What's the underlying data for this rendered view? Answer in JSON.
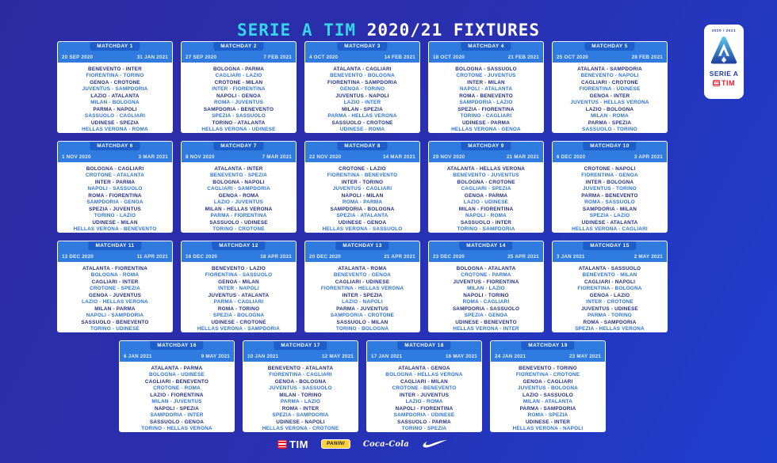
{
  "title": {
    "highlight": "SERIE A TIM",
    "rest": " 2020/21 FIXTURES"
  },
  "badge": {
    "season": "2020 / 2021",
    "league": "SERIE A",
    "sponsor": "TIM"
  },
  "colors": {
    "background_top": "#2c2ca2",
    "background_bottom": "#1e3ecf",
    "title_accent_cyan": "#35d6e8",
    "card_header_blue": "#2f7be0",
    "matchday_tab_blue": "#1d5ecb",
    "fixture_dark_blue": "#232f88",
    "fixture_light_blue": "#2e72d8",
    "tim_red": "#e8192c",
    "panini_yellow": "#ffd23d"
  },
  "footer": {
    "tim": "TIM",
    "panini": "PANINI",
    "coca_cola": "Coca-Cola",
    "nike": "nike-swoosh"
  },
  "matchdays": [
    {
      "label": "MATCHDAY 1",
      "first_leg": "20 SEP 2020",
      "second_leg": "31 JAN 2021",
      "fixtures": [
        "BENEVENTO - INTER",
        "FIORENTINA - TORINO",
        "GENOA - CROTONE",
        "JUVENTUS - SAMPDORIA",
        "LAZIO - ATALANTA",
        "MILAN - BOLOGNA",
        "PARMA - NAPOLI",
        "SASSUOLO - CAGLIARI",
        "UDINESE - SPEZIA",
        "HELLAS VERONA - ROMA"
      ]
    },
    {
      "label": "MATCHDAY 2",
      "first_leg": "27 SEP 2020",
      "second_leg": "7 FEB 2021",
      "fixtures": [
        "BOLOGNA - PARMA",
        "CAGLIARI - LAZIO",
        "CROTONE - MILAN",
        "INTER - FIORENTINA",
        "NAPOLI - GENOA",
        "ROMA - JUVENTUS",
        "SAMPDORIA - BENEVENTO",
        "SPEZIA - SASSUOLO",
        "TORINO - ATALANTA",
        "HELLAS VERONA - UDINESE"
      ]
    },
    {
      "label": "MATCHDAY 3",
      "first_leg": "4 OCT 2020",
      "second_leg": "14 FEB 2021",
      "fixtures": [
        "ATALANTA - CAGLIARI",
        "BENEVENTO - BOLOGNA",
        "FIORENTINA - SAMPDORIA",
        "GENOA - TORINO",
        "JUVENTUS - NAPOLI",
        "LAZIO - INTER",
        "MILAN - SPEZIA",
        "PARMA - HELLAS VERONA",
        "SASSUOLO - CROTONE",
        "UDINESE - ROMA"
      ]
    },
    {
      "label": "MATCHDAY 4",
      "first_leg": "18 OCT 2020",
      "second_leg": "21 FEB 2021",
      "fixtures": [
        "BOLOGNA - SASSUOLO",
        "CROTONE - JUVENTUS",
        "INTER - MILAN",
        "NAPOLI - ATALANTA",
        "ROMA - BENEVENTO",
        "SAMPDORIA - LAZIO",
        "SPEZIA - FIORENTINA",
        "TORINO - CAGLIARI",
        "UDINESE - PARMA",
        "HELLAS VERONA - GENOA"
      ]
    },
    {
      "label": "MATCHDAY 5",
      "first_leg": "25 OCT 2020",
      "second_leg": "28 FEB 2021",
      "fixtures": [
        "ATALANTA - SAMPDORIA",
        "BENEVENTO - NAPOLI",
        "CAGLIARI - CROTONE",
        "FIORENTINA - UDINESE",
        "GENOA - INTER",
        "JUVENTUS - HELLAS VERONA",
        "LAZIO - BOLOGNA",
        "MILAN - ROMA",
        "PARMA - SPEZIA",
        "SASSUOLO - TORINO"
      ]
    },
    {
      "label": "MATCHDAY 6",
      "first_leg": "1 NOV 2020",
      "second_leg": "3 MAR 2021",
      "fixtures": [
        "BOLOGNA - CAGLIARI",
        "CROTONE - ATALANTA",
        "INTER - PARMA",
        "NAPOLI - SASSUOLO",
        "ROMA - FIORENTINA",
        "SAMPDORIA - GENOA",
        "SPEZIA - JUVENTUS",
        "TORINO - LAZIO",
        "UDINESE - MILAN",
        "HELLAS VERONA - BENEVENTO"
      ]
    },
    {
      "label": "MATCHDAY 7",
      "first_leg": "8 NOV 2020",
      "second_leg": "7 MAR 2021",
      "fixtures": [
        "ATALANTA - INTER",
        "BENEVENTO - SPEZIA",
        "BOLOGNA - NAPOLI",
        "CAGLIARI - SAMPDORIA",
        "GENOA - ROMA",
        "LAZIO - JUVENTUS",
        "MILAN - HELLAS VERONA",
        "PARMA - FIORENTINA",
        "SASSUOLO - UDINESE",
        "TORINO - CROTONE"
      ]
    },
    {
      "label": "MATCHDAY 8",
      "first_leg": "22 NOV 2020",
      "second_leg": "14 MAR 2021",
      "fixtures": [
        "CROTONE - LAZIO",
        "FIORENTINA - BENEVENTO",
        "INTER - TORINO",
        "JUVENTUS - CAGLIARI",
        "NAPOLI - MILAN",
        "ROMA - PARMA",
        "SAMPDORIA - BOLOGNA",
        "SPEZIA - ATALANTA",
        "UDINESE - GENOA",
        "HELLAS VERONA - SASSUOLO"
      ]
    },
    {
      "label": "MATCHDAY 9",
      "first_leg": "29 NOV 2020",
      "second_leg": "21 MAR 2021",
      "fixtures": [
        "ATALANTA - HELLAS VERONA",
        "BENEVENTO - JUVENTUS",
        "BOLOGNA - CROTONE",
        "CAGLIARI - SPEZIA",
        "GENOA - PARMA",
        "LAZIO - UDINESE",
        "MILAN - FIORENTINA",
        "NAPOLI - ROMA",
        "SASSUOLO - INTER",
        "TORINO - SAMPDORIA"
      ]
    },
    {
      "label": "MATCHDAY 10",
      "first_leg": "6 DEC 2020",
      "second_leg": "3 APR 2021",
      "fixtures": [
        "CROTONE - NAPOLI",
        "FIORENTINA - GENOA",
        "INTER - BOLOGNA",
        "JUVENTUS - TORINO",
        "PARMA - BENEVENTO",
        "ROMA - SASSUOLO",
        "SAMPDORIA - MILAN",
        "SPEZIA - LAZIO",
        "UDINESE - ATALANTA",
        "HELLAS VERONA - CAGLIARI"
      ]
    },
    {
      "label": "MATCHDAY 11",
      "first_leg": "13 DEC 2020",
      "second_leg": "11 APR 2021",
      "fixtures": [
        "ATALANTA - FIORENTINA",
        "BOLOGNA - ROMA",
        "CAGLIARI - INTER",
        "CROTONE - SPEZIA",
        "GENOA - JUVENTUS",
        "LAZIO - HELLAS VERONA",
        "MILAN - PARMA",
        "NAPOLI - SAMPDORIA",
        "SASSUOLO - BENEVENTO",
        "TORINO - UDINESE"
      ]
    },
    {
      "label": "MATCHDAY 12",
      "first_leg": "16 DEC 2020",
      "second_leg": "18 APR 2021",
      "fixtures": [
        "BENEVENTO - LAZIO",
        "FIORENTINA - SASSUOLO",
        "GENOA - MILAN",
        "INTER - NAPOLI",
        "JUVENTUS - ATALANTA",
        "PARMA - CAGLIARI",
        "ROMA - TORINO",
        "SPEZIA - BOLOGNA",
        "UDINESE - CROTONE",
        "HELLAS VERONA - SAMPDORIA"
      ]
    },
    {
      "label": "MATCHDAY 13",
      "first_leg": "20 DEC 2020",
      "second_leg": "21 APR 2021",
      "fixtures": [
        "ATALANTA - ROMA",
        "BENEVENTO - GENOA",
        "CAGLIARI - UDINESE",
        "FIORENTINA - HELLAS VERONA",
        "INTER - SPEZIA",
        "LAZIO - NAPOLI",
        "PARMA - JUVENTUS",
        "SAMPDORIA - CROTONE",
        "SASSUOLO - MILAN",
        "TORINO - BOLOGNA"
      ]
    },
    {
      "label": "MATCHDAY 14",
      "first_leg": "23 DEC 2020",
      "second_leg": "25 APR 2021",
      "fixtures": [
        "BOLOGNA - ATALANTA",
        "CROTONE - PARMA",
        "JUVENTUS - FIORENTINA",
        "MILAN - LAZIO",
        "NAPOLI - TORINO",
        "ROMA - CAGLIARI",
        "SAMPDORIA - SASSUOLO",
        "SPEZIA - GENOA",
        "UDINESE - BENEVENTO",
        "HELLAS VERONA - INTER"
      ]
    },
    {
      "label": "MATCHDAY 15",
      "first_leg": "3 JAN 2021",
      "second_leg": "2 MAY 2021",
      "fixtures": [
        "ATALANTA - SASSUOLO",
        "BENEVENTO - MILAN",
        "CAGLIARI - NAPOLI",
        "FIORENTINA - BOLOGNA",
        "GENOA - LAZIO",
        "INTER - CROTONE",
        "JUVENTUS - UDINESE",
        "PARMA - TORINO",
        "ROMA - SAMPDORIA",
        "SPEZIA - HELLAS VERONA"
      ]
    },
    {
      "label": "MATCHDAY 16",
      "first_leg": "6 JAN 2021",
      "second_leg": "9 MAY 2021",
      "fixtures": [
        "ATALANTA - PARMA",
        "BOLOGNA - UDINESE",
        "CAGLIARI - BENEVENTO",
        "CROTONE - ROMA",
        "LAZIO - FIORENTINA",
        "MILAN - JUVENTUS",
        "NAPOLI - SPEZIA",
        "SAMPDORIA - INTER",
        "SASSUOLO - GENOA",
        "TORINO - HELLAS VERONA"
      ]
    },
    {
      "label": "MATCHDAY 17",
      "first_leg": "10 JAN 2021",
      "second_leg": "12 MAY 2021",
      "fixtures": [
        "BENEVENTO - ATALANTA",
        "FIORENTINA - CAGLIARI",
        "GENOA - BOLOGNA",
        "JUVENTUS - SASSUOLO",
        "MILAN - TORINO",
        "PARMA - LAZIO",
        "ROMA - INTER",
        "SPEZIA - SAMPDORIA",
        "UDINESE - NAPOLI",
        "HELLAS VERONA - CROTONE"
      ]
    },
    {
      "label": "MATCHDAY 18",
      "first_leg": "17 JAN 2021",
      "second_leg": "16 MAY 2021",
      "fixtures": [
        "ATALANTA - GENOA",
        "BOLOGNA - HELLAS VERONA",
        "CAGLIARI - MILAN",
        "CROTONE - BENEVENTO",
        "INTER - JUVENTUS",
        "LAZIO - ROMA",
        "NAPOLI - FIORENTINA",
        "SAMPDORIA - UDINESE",
        "SASSUOLO - PARMA",
        "TORINO - SPEZIA"
      ]
    },
    {
      "label": "MATCHDAY 19",
      "first_leg": "24 JAN 2021",
      "second_leg": "23 MAY 2021",
      "fixtures": [
        "BENEVENTO - TORINO",
        "FIORENTINA - CROTONE",
        "GENOA - CAGLIARI",
        "JUVENTUS - BOLOGNA",
        "LAZIO - SASSUOLO",
        "MILAN - ATALANTA",
        "PARMA - SAMPDORIA",
        "ROMA - SPEZIA",
        "UDINESE - INTER",
        "HELLAS VERONA - NAPOLI"
      ]
    }
  ]
}
